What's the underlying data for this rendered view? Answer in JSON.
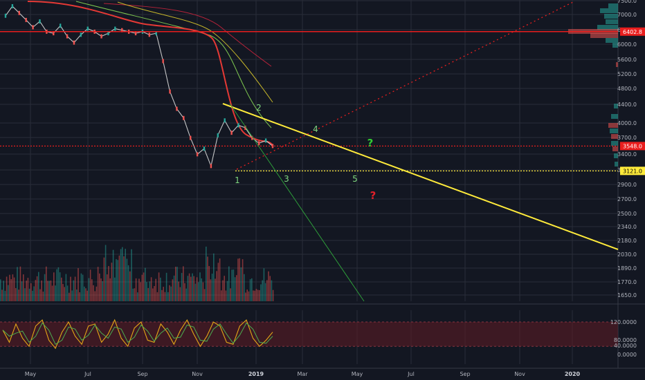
{
  "colors": {
    "background": "#131722",
    "grid": "#2a2e39",
    "bull": "#26a69a",
    "bear": "#ef5350",
    "trendline": "#ffeb3b",
    "support": "#ffeb3b",
    "resistance": "#e91e1e",
    "rsi_line": "#e6a817",
    "rsi_band": "#5a1a24"
  },
  "chart_data": [
    {
      "type": "line",
      "x_ticks": [
        "May",
        "Jul",
        "Sep",
        "Nov",
        "2019",
        "Mar",
        "May",
        "Jul",
        "Sep",
        "Nov",
        "2020"
      ],
      "y_ticks": [
        "7500.0",
        "7000.0",
        "6500.0",
        "6000.0",
        "5600.0",
        "5200.0",
        "4800.0",
        "4400.0",
        "4000.0",
        "3700.0",
        "3400.0",
        "3100.0",
        "2900.0",
        "2700.0",
        "2500.0",
        "2340.0",
        "2180.0",
        "2030.0",
        "1890.0",
        "1770.0",
        "1650.0"
      ],
      "y_scale": "log",
      "ylim": [
        1580,
        7700
      ],
      "price_tags": [
        {
          "label": "6402.8",
          "value": 6402.8,
          "color": "#e91e1e"
        },
        {
          "label": "3548.0",
          "value": 3548.0,
          "color": "#e91e1e"
        },
        {
          "label": "3121.0",
          "value": 3121.0,
          "color": "#ffeb3b"
        }
      ],
      "horizontal_levels": [
        {
          "value": 6402.8,
          "style": "solid",
          "color": "#e91e1e"
        },
        {
          "value": 3548.0,
          "style": "dotted",
          "color": "#e91e1e"
        },
        {
          "value": 3121.0,
          "style": "dotted",
          "color": "#ffeb3b"
        }
      ],
      "wave_labels": [
        "1",
        "2",
        "3",
        "4",
        "5"
      ],
      "scenario_markers": [
        {
          "label": "?",
          "color": "#33cc33"
        },
        {
          "label": "?",
          "color": "#e0202a"
        }
      ],
      "series": [
        {
          "values": [
            6950,
            7300,
            7050,
            6800,
            6550,
            6750,
            6400,
            6350,
            6600,
            6250,
            6050,
            6300,
            6500,
            6400,
            6250,
            6350,
            6500,
            6450,
            6400,
            6350,
            6400,
            6300,
            6350,
            5500,
            4700,
            4300,
            4100,
            3700,
            3400,
            3500,
            3200,
            3750,
            4050,
            3800,
            3950,
            3900,
            3700,
            3600,
            3650,
            3548
          ]
        }
      ]
    },
    {
      "type": "line",
      "y_ticks": [
        "120.0000",
        "80.0000",
        "40.0000",
        "0.0000"
      ],
      "ylim": [
        -10,
        125
      ],
      "band": [
        20,
        80
      ],
      "series": [
        {
          "values": [
            60,
            30,
            75,
            40,
            20,
            70,
            85,
            35,
            15,
            55,
            80,
            45,
            25,
            70,
            75,
            30,
            50,
            85,
            40,
            20,
            65,
            80,
            35,
            30,
            75,
            55,
            25,
            60,
            85,
            50,
            20,
            45,
            80,
            70,
            30,
            25,
            70,
            85,
            40,
            20,
            35,
            55
          ]
        }
      ]
    }
  ]
}
